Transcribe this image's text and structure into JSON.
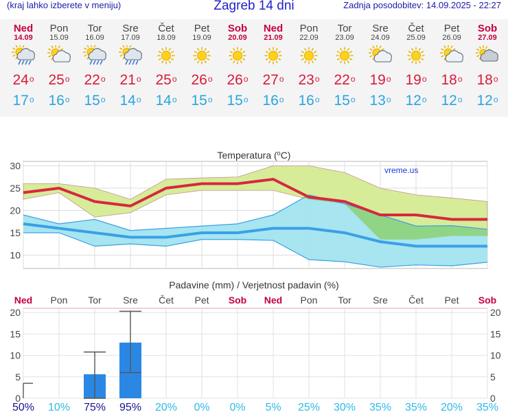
{
  "header": {
    "left_note": "(kraj lahko izberete v meniju)",
    "title": "Zagreb 14 dni",
    "updated": "Zadnja posodobitev: 14.09.2025 - 22:27"
  },
  "days": [
    {
      "name": "Ned",
      "date": "14.09",
      "weekend": true,
      "icon": "sun-cloud-rain-icon",
      "high": "24",
      "low": "17"
    },
    {
      "name": "Pon",
      "date": "15.09",
      "weekend": false,
      "icon": "sun-cloud-icon",
      "high": "25",
      "low": "16"
    },
    {
      "name": "Tor",
      "date": "16.09",
      "weekend": false,
      "icon": "sun-cloud-rain-icon",
      "high": "22",
      "low": "15"
    },
    {
      "name": "Sre",
      "date": "17.09",
      "weekend": false,
      "icon": "sun-cloud-rain-icon",
      "high": "21",
      "low": "14"
    },
    {
      "name": "Čet",
      "date": "18.09",
      "weekend": false,
      "icon": "sun-icon",
      "high": "25",
      "low": "14"
    },
    {
      "name": "Pet",
      "date": "19.09",
      "weekend": false,
      "icon": "sun-icon",
      "high": "26",
      "low": "15"
    },
    {
      "name": "Sob",
      "date": "20.09",
      "weekend": true,
      "icon": "sun-icon",
      "high": "26",
      "low": "15"
    },
    {
      "name": "Ned",
      "date": "21.09",
      "weekend": true,
      "icon": "sun-icon",
      "high": "27",
      "low": "16"
    },
    {
      "name": "Pon",
      "date": "22.09",
      "weekend": false,
      "icon": "sun-icon",
      "high": "23",
      "low": "16"
    },
    {
      "name": "Tor",
      "date": "23.09",
      "weekend": false,
      "icon": "sun-icon",
      "high": "22",
      "low": "15"
    },
    {
      "name": "Sre",
      "date": "24.09",
      "weekend": false,
      "icon": "sun-cloud-icon",
      "high": "19",
      "low": "13"
    },
    {
      "name": "Čet",
      "date": "25.09",
      "weekend": false,
      "icon": "sun-icon",
      "high": "19",
      "low": "12"
    },
    {
      "name": "Pet",
      "date": "26.09",
      "weekend": false,
      "icon": "sun-cloud-icon",
      "high": "18",
      "low": "12"
    },
    {
      "name": "Sob",
      "date": "27.09",
      "weekend": true,
      "icon": "cloud-sun-icon",
      "high": "18",
      "low": "12"
    }
  ],
  "colors": {
    "weekend": "#c4003e",
    "high_line": "#d7283f",
    "low_line": "#3aa0e6",
    "high_band": "#d6ec98",
    "low_band": "#a2e4f0",
    "overlap_band": "#8fd585",
    "rain_bar": "#2a88e4",
    "pct_high": "#14148f",
    "pct_low": "#2fb9e6"
  },
  "chart_data": [
    {
      "type": "line",
      "title": "Temperatura (°C)",
      "title_main": "Temperatura (",
      "title_unit_sup": "o",
      "title_unit_rest": "C)",
      "watermark": "vreme.us",
      "ylim": [
        7,
        31
      ],
      "yticks": [
        "30",
        "25",
        "20",
        "15",
        "10"
      ],
      "x": [
        "14.09",
        "15.09",
        "16.09",
        "17.09",
        "18.09",
        "19.09",
        "20.09",
        "21.09",
        "22.09",
        "23.09",
        "24.09",
        "25.09",
        "26.09",
        "27.09"
      ],
      "series": [
        {
          "role": "max",
          "values": [
            24,
            25,
            22,
            21,
            25,
            26,
            26,
            27,
            23,
            22,
            19,
            19,
            18,
            18
          ]
        },
        {
          "role": "max_band_upper",
          "values": [
            26,
            26,
            25,
            22.5,
            27,
            27.3,
            27.5,
            30,
            30,
            28.5,
            25,
            23.5,
            22.8,
            22
          ]
        },
        {
          "role": "max_band_lower",
          "values": [
            22.5,
            24,
            18.5,
            19.5,
            23.5,
            24.5,
            24.5,
            24.5,
            22.5,
            21.5,
            13.5,
            13.5,
            14.3,
            14.3
          ]
        },
        {
          "role": "min",
          "values": [
            17,
            16,
            15,
            14,
            14,
            15,
            15,
            16,
            16,
            15,
            13,
            12,
            12,
            12
          ]
        },
        {
          "role": "min_band_upper",
          "values": [
            19,
            17,
            18,
            15.5,
            16,
            16.5,
            17,
            19,
            23.5,
            21.5,
            19,
            16.5,
            16.6,
            15.8
          ]
        },
        {
          "role": "min_band_lower",
          "values": [
            15,
            15,
            12,
            12.5,
            12,
            13.5,
            13.5,
            13.3,
            9,
            8.5,
            7.3,
            7.8,
            7.6,
            8.4
          ]
        }
      ]
    },
    {
      "type": "bar",
      "title": "Padavine (mm) / Verjetnost padavin (%)",
      "ylim": [
        0,
        21
      ],
      "yticks": [
        "20",
        "15",
        "10",
        "5",
        "0"
      ],
      "categories": [
        "Ned",
        "Pon",
        "Tor",
        "Sre",
        "Čet",
        "Pet",
        "Sob",
        "Ned",
        "Pon",
        "Tor",
        "Sre",
        "Čet",
        "Pet",
        "Sob"
      ],
      "weekend": [
        true,
        false,
        false,
        false,
        false,
        false,
        true,
        true,
        false,
        false,
        false,
        false,
        false,
        true
      ],
      "values": [
        0,
        0,
        5.6,
        13,
        0,
        0,
        0,
        0,
        0,
        0,
        0,
        0,
        0,
        0
      ],
      "error_low": [
        0,
        0,
        0,
        6,
        0,
        0,
        0,
        0,
        0,
        0,
        0,
        0,
        0,
        0
      ],
      "error_high": [
        3.5,
        0,
        10.8,
        20.3,
        0,
        0,
        0,
        0,
        0,
        0,
        0,
        0,
        0,
        0
      ],
      "probability": [
        "50%",
        "10%",
        "75%",
        "95%",
        "20%",
        "0%",
        "0%",
        "5%",
        "25%",
        "30%",
        "35%",
        "35%",
        "20%",
        "35%"
      ]
    }
  ]
}
